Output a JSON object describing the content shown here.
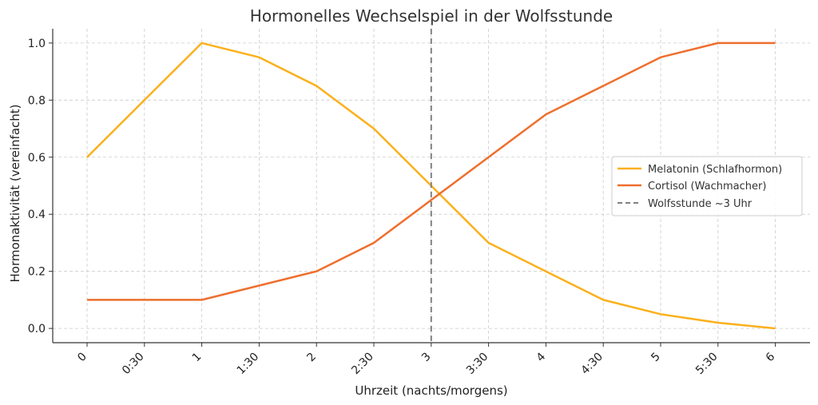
{
  "chart_data": {
    "type": "line",
    "title": "Hormonelles Wechselspiel in der Wolfsstunde",
    "xlabel": "Uhrzeit (nachts/morgens)",
    "ylabel": "Hormonaktivität (vereinfacht)",
    "categories": [
      "0",
      "0:30",
      "1",
      "1:30",
      "2",
      "2:30",
      "3",
      "3:30",
      "4",
      "4:30",
      "5",
      "5:30",
      "6"
    ],
    "y_ticks": [
      "0.0",
      "0.2",
      "0.4",
      "0.6",
      "0.8",
      "1.0"
    ],
    "ylim": [
      -0.05,
      1.05
    ],
    "grid": true,
    "legend_position": "center-right",
    "series": [
      {
        "name": "Melatonin (Schlafhormon)",
        "color": "#FBB01C",
        "values": [
          0.6,
          0.8,
          1.0,
          0.95,
          0.85,
          0.7,
          0.5,
          0.3,
          0.2,
          0.1,
          0.05,
          0.02,
          0.0
        ]
      },
      {
        "name": "Cortisol (Wachmacher)",
        "color": "#EE6F2D",
        "values": [
          0.1,
          0.1,
          0.1,
          0.15,
          0.2,
          0.3,
          0.45,
          0.6,
          0.75,
          0.85,
          0.95,
          1.0,
          1.0
        ]
      }
    ],
    "marker_line": {
      "label": "Wolfsstunde ~3 Uhr",
      "x": "3",
      "color": "#808080",
      "style": "dashed"
    }
  }
}
